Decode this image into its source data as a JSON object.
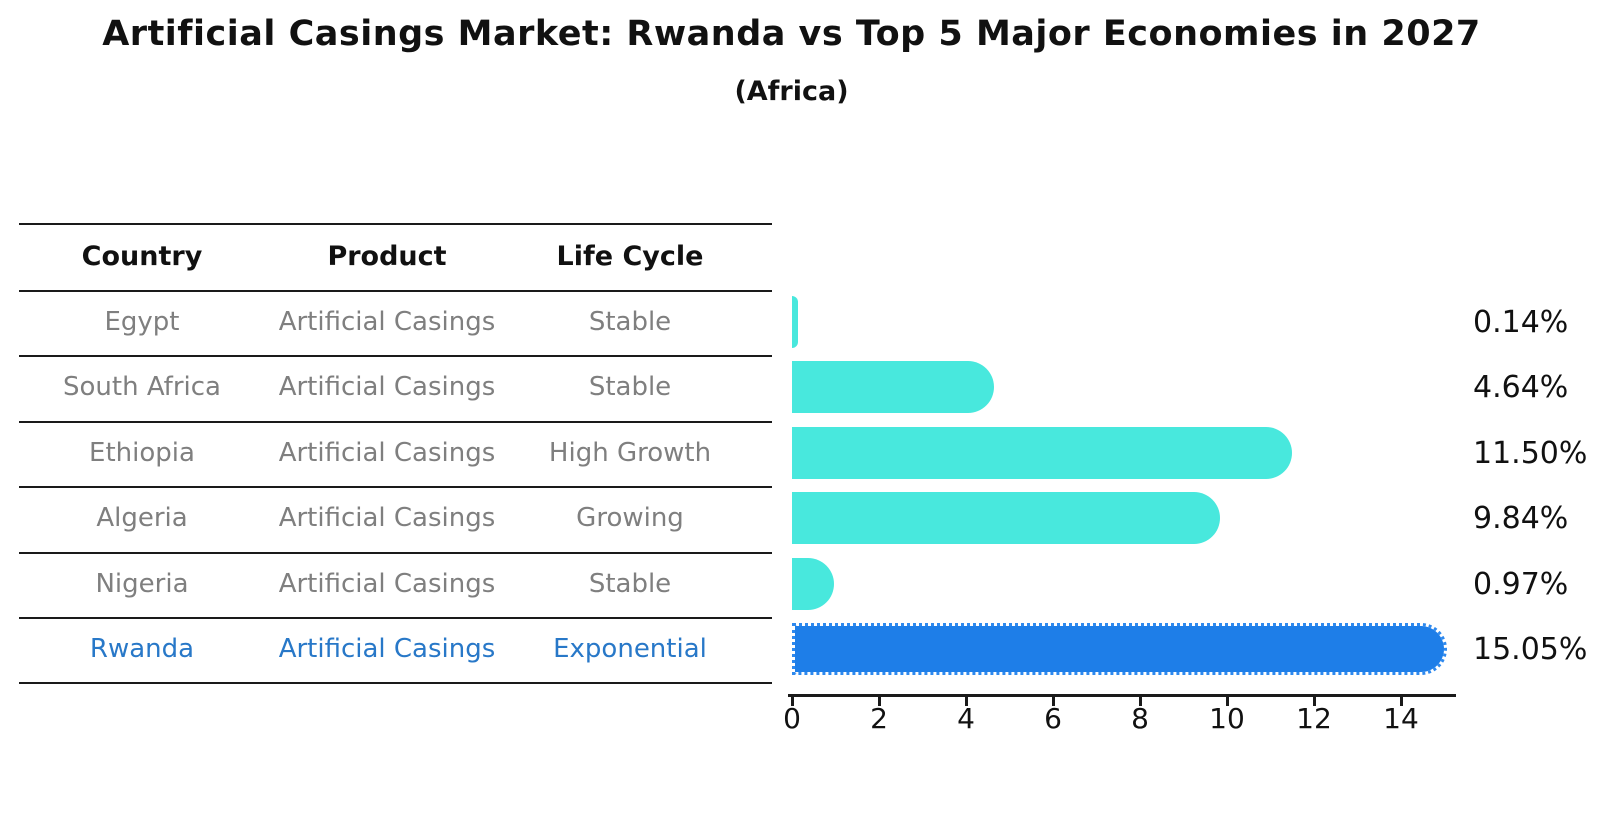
{
  "title": "Artificial Casings Market: Rwanda vs Top 5 Major Economies in 2027",
  "subtitle": "(Africa)",
  "table": {
    "headers": {
      "country": "Country",
      "product": "Product",
      "life_cycle": "Life Cycle"
    },
    "rows": [
      {
        "country": "Egypt",
        "product": "Artificial Casings",
        "life_cycle": "Stable",
        "value_label": "0.14%"
      },
      {
        "country": "South Africa",
        "product": "Artificial Casings",
        "life_cycle": "Stable",
        "value_label": "4.64%"
      },
      {
        "country": "Ethiopia",
        "product": "Artificial Casings",
        "life_cycle": "High Growth",
        "value_label": "11.50%"
      },
      {
        "country": "Algeria",
        "product": "Artificial Casings",
        "life_cycle": "Growing",
        "value_label": "9.84%"
      },
      {
        "country": "Nigeria",
        "product": "Artificial Casings",
        "life_cycle": "Stable",
        "value_label": "0.97%"
      },
      {
        "country": "Rwanda",
        "product": "Artificial Casings",
        "life_cycle": "Exponential",
        "value_label": "15.05%"
      }
    ]
  },
  "chart_data": {
    "type": "bar",
    "orientation": "horizontal",
    "title": "Artificial Casings Market: Rwanda vs Top 5 Major Economies in 2027",
    "subtitle": "(Africa)",
    "categories": [
      "Egypt",
      "South Africa",
      "Ethiopia",
      "Algeria",
      "Nigeria",
      "Rwanda"
    ],
    "values": [
      0.14,
      4.64,
      11.5,
      9.84,
      0.97,
      15.05
    ],
    "value_labels": [
      "0.14%",
      "4.64%",
      "11.50%",
      "9.84%",
      "0.97%",
      "15.05%"
    ],
    "xlabel": "",
    "ylabel": "",
    "x_ticks": [
      0,
      2,
      4,
      6,
      8,
      10,
      12,
      14
    ],
    "xlim": [
      0,
      15.3
    ],
    "grid": false,
    "legend": "none",
    "highlight_index": 5
  },
  "colors": {
    "bar": "#48e8dd",
    "highlight_bar": "#1e7ee8",
    "highlight_edge": "#2e89ee",
    "highlight_text": "#2878c8",
    "row_text": "#7f7f7f",
    "ink": "#111111"
  }
}
